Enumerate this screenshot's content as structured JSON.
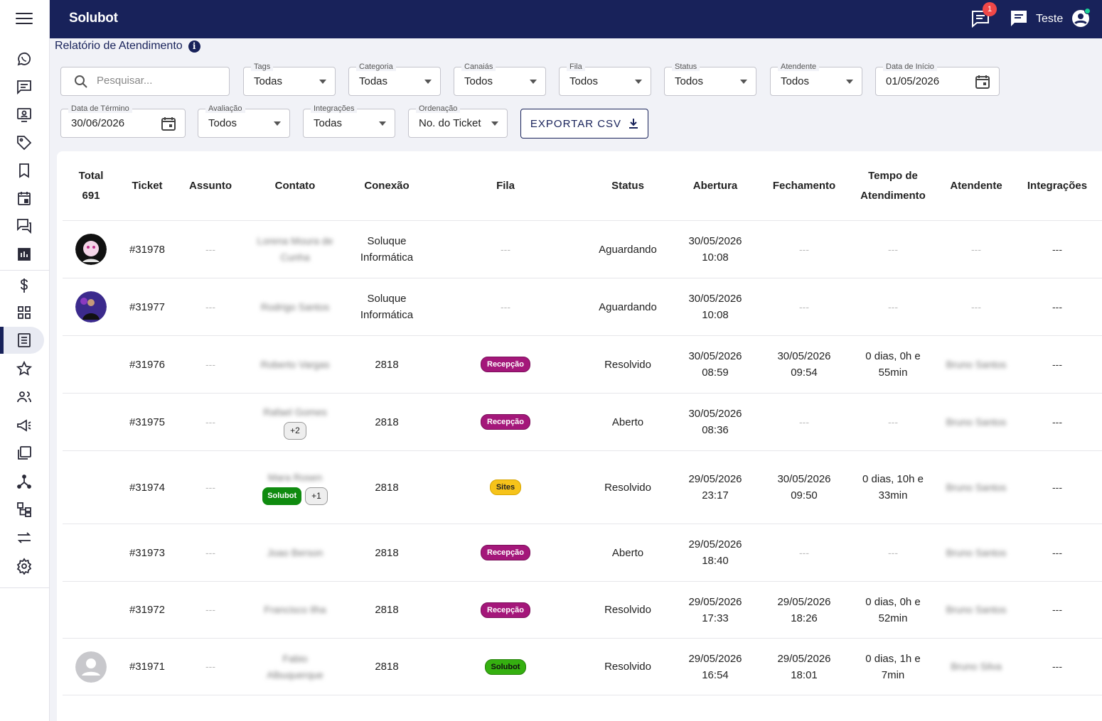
{
  "app": {
    "brand": "Solubot",
    "user_name": "Teste",
    "notification_count": "1"
  },
  "page": {
    "title": "Relatório de Atendimento"
  },
  "filters": {
    "search_placeholder": "Pesquisar...",
    "tags": {
      "label": "Tags",
      "value": "Todas"
    },
    "categoria": {
      "label": "Categoria",
      "value": "Todas"
    },
    "canais": {
      "label": "Canaiás",
      "value": "Todos"
    },
    "fila": {
      "label": "Fila",
      "value": "Todos"
    },
    "status": {
      "label": "Status",
      "value": "Todos"
    },
    "atendente": {
      "label": "Atendente",
      "value": "Todos"
    },
    "data_inicio": {
      "label": "Data de Início",
      "value": "01/05/2026"
    },
    "data_termino": {
      "label": "Data de Término",
      "value": "30/06/2026"
    },
    "avaliacao": {
      "label": "Avaliação",
      "value": "Todos"
    },
    "integracoes": {
      "label": "Integrações",
      "value": "Todas"
    },
    "ordenacao": {
      "label": "Ordenação",
      "value": "No. do Ticket"
    },
    "export_label": "EXPORTAR CSV"
  },
  "table": {
    "headers": {
      "total_label": "Total",
      "total_value": "691",
      "ticket": "Ticket",
      "assunto": "Assunto",
      "contato": "Contato",
      "conexao": "Conexão",
      "fila": "Fila",
      "status": "Status",
      "abertura": "Abertura",
      "fechamento": "Fechamento",
      "tempo_l1": "Tempo de",
      "tempo_l2": "Atendimento",
      "atendente": "Atendente",
      "integracoes": "Integrações"
    },
    "rows": [
      {
        "ticket": "#31978",
        "assunto": "---",
        "contato": "Lorena Moura de Cunha",
        "conexao_l1": "Soluque",
        "conexao_l2": "Informática",
        "fila": "---",
        "status": "Aguardando",
        "abertura_date": "30/05/2026",
        "abertura_time": "10:08",
        "fechamento": "---",
        "tempo": "---",
        "atendente": "---",
        "integracoes": "---"
      },
      {
        "ticket": "#31977",
        "assunto": "---",
        "contato": "Rodrigo Santos",
        "conexao_l1": "Soluque",
        "conexao_l2": "Informática",
        "fila": "---",
        "status": "Aguardando",
        "abertura_date": "30/05/2026",
        "abertura_time": "10:08",
        "fechamento": "---",
        "tempo": "---",
        "atendente": "---",
        "integracoes": "---"
      },
      {
        "ticket": "#31976",
        "assunto": "---",
        "contato": "Roberto Vargas",
        "conexao": "2818",
        "fila": "Recepção",
        "status": "Resolvido",
        "abertura_date": "30/05/2026",
        "abertura_time": "08:59",
        "fechamento_date": "30/05/2026",
        "fechamento_time": "09:54",
        "tempo_l1": "0 dias, 0h e",
        "tempo_l2": "55min",
        "atendente": "Bruno Santos",
        "integracoes": "---"
      },
      {
        "ticket": "#31975",
        "assunto": "---",
        "contato": "Rafael Gomes",
        "contato_extra": "+2",
        "conexao": "2818",
        "fila": "Recepção",
        "status": "Aberto",
        "abertura_date": "30/05/2026",
        "abertura_time": "08:36",
        "fechamento": "---",
        "tempo": "---",
        "atendente": "Bruno Santos",
        "integracoes": "---"
      },
      {
        "ticket": "#31974",
        "assunto": "---",
        "contato": "Mara Rosen",
        "contato_tag": "Solubot",
        "contato_extra": "+1",
        "conexao": "2818",
        "fila": "Sites",
        "status": "Resolvido",
        "abertura_date": "29/05/2026",
        "abertura_time": "23:17",
        "fechamento_date": "30/05/2026",
        "fechamento_time": "09:50",
        "tempo_l1": "0 dias, 10h e",
        "tempo_l2": "33min",
        "atendente": "Bruno Santos",
        "integracoes": "---"
      },
      {
        "ticket": "#31973",
        "assunto": "---",
        "contato": "Joao Berson",
        "conexao": "2818",
        "fila": "Recepção",
        "status": "Aberto",
        "abertura_date": "29/05/2026",
        "abertura_time": "18:40",
        "fechamento": "---",
        "tempo": "---",
        "atendente": "Bruno Santos",
        "integracoes": "---"
      },
      {
        "ticket": "#31972",
        "assunto": "---",
        "contato": "Francisco Ilha",
        "conexao": "2818",
        "fila": "Recepção",
        "status": "Resolvido",
        "abertura_date": "29/05/2026",
        "abertura_time": "17:33",
        "fechamento_date": "29/05/2026",
        "fechamento_time": "18:26",
        "tempo_l1": "0 dias, 0h e",
        "tempo_l2": "52min",
        "atendente": "Bruno Santos",
        "integracoes": "---"
      },
      {
        "ticket": "#31971",
        "assunto": "---",
        "contato_l1": "Fabio",
        "contato_l2": "Albuquerque",
        "conexao": "2818",
        "fila": "Solubot",
        "status": "Resolvido",
        "abertura_date": "29/05/2026",
        "abertura_time": "16:54",
        "fechamento_date": "29/05/2026",
        "fechamento_time": "18:01",
        "tempo_l1": "0 dias, 1h e",
        "tempo_l2": "7min",
        "atendente": "Bruno Silva",
        "integracoes": "---"
      }
    ]
  },
  "colors": {
    "navy": "#18225a",
    "recepcao": "#a4177a",
    "sites": "#f6c31a",
    "solubot_queue": "#35b010",
    "badge": "#f04848"
  },
  "icons": [
    "menu-icon",
    "whatsapp-icon",
    "chat-icon",
    "monitor-user-icon",
    "tag-icon",
    "bookmark-icon",
    "calendar-icon",
    "forum-icon",
    "dashboard-icon",
    "dollar-icon",
    "grid-icon",
    "report-list-icon",
    "star-icon",
    "users-icon",
    "megaphone-icon",
    "folders-icon",
    "flow-icon",
    "integration-icon",
    "swap-icon",
    "gear-icon",
    "search-icon",
    "download-icon",
    "info-icon"
  ]
}
